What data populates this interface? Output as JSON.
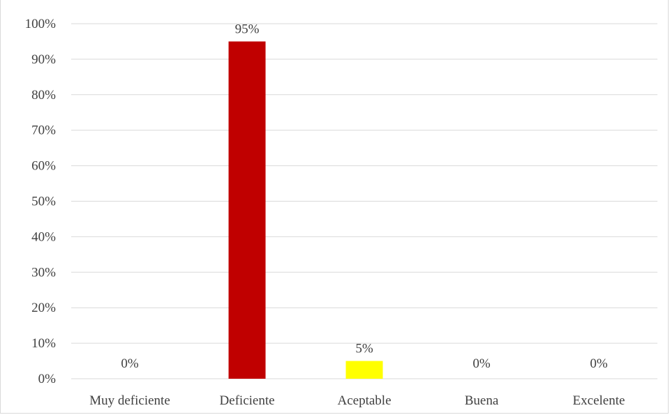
{
  "chart_data": {
    "type": "bar",
    "categories": [
      "Muy deficiente",
      "Deficiente",
      "Aceptable",
      "Buena",
      "Excelente"
    ],
    "values": [
      0,
      95,
      5,
      0,
      0
    ],
    "data_labels": [
      "0%",
      "95%",
      "5%",
      "0%",
      "0%"
    ],
    "bar_colors": [
      "#c00000",
      "#c00000",
      "#ffff00",
      "#c00000",
      "#c00000"
    ],
    "ylim": [
      0,
      100
    ],
    "yticks": [
      0,
      10,
      20,
      30,
      40,
      50,
      60,
      70,
      80,
      90,
      100
    ],
    "ytick_labels": [
      "0%",
      "10%",
      "20%",
      "30%",
      "40%",
      "50%",
      "60%",
      "70%",
      "80%",
      "90%",
      "100%"
    ],
    "grid": true,
    "gridline_color": "#d9d9d9",
    "title": "",
    "xlabel": "",
    "ylabel": ""
  }
}
